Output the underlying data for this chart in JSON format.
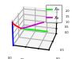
{
  "title": "",
  "legend_labels": [
    "$X_{fx}$",
    "$X_{tr}$"
  ],
  "legend_colors": [
    "#00ee00",
    "#cc00cc"
  ],
  "elev": 25,
  "azim": -75,
  "xlim": [
    0,
    0.5
  ],
  "ylim": [
    0,
    0.5
  ],
  "zlim": [
    0,
    2.0
  ],
  "blue_x": [
    0,
    0,
    0,
    0,
    0,
    0,
    0,
    0,
    0,
    0,
    0,
    0,
    0,
    0,
    0,
    0,
    0,
    0,
    0,
    0,
    0
  ],
  "blue_y": [
    0,
    0,
    0,
    0,
    0,
    0,
    0,
    0,
    0,
    0,
    0,
    0,
    0,
    0,
    0,
    0,
    0,
    0,
    0,
    0,
    0
  ],
  "blue_z": [
    0,
    0.1,
    0.2,
    0.3,
    0.4,
    0.5,
    0.6,
    0.7,
    0.8,
    0.9,
    1.0,
    1.1,
    1.2,
    1.3,
    1.4,
    1.5,
    1.6,
    1.7,
    1.8,
    1.9,
    2.0
  ],
  "red_x": [
    0.0,
    0.005,
    0.015,
    0.03,
    0.05,
    0.08,
    0.12,
    0.17,
    0.22,
    0.28,
    0.33
  ],
  "red_y": [
    0,
    0,
    0,
    0,
    0,
    0,
    0,
    0,
    0,
    0,
    0
  ],
  "red_z": [
    2.0,
    1.98,
    1.95,
    1.91,
    1.87,
    1.82,
    1.77,
    1.72,
    1.67,
    1.62,
    1.57
  ],
  "green_x": [
    0.33,
    0.43,
    0.53,
    0.63,
    0.73,
    0.83,
    0.93,
    1.03,
    1.13,
    1.23,
    1.33
  ],
  "green_y": [
    0,
    0,
    0,
    0,
    0,
    0,
    0,
    0,
    0,
    0,
    0
  ],
  "green_z": [
    1.57,
    1.57,
    1.57,
    1.57,
    1.57,
    1.57,
    1.57,
    1.57,
    1.57,
    1.57,
    1.57
  ],
  "magenta_x": [
    0.33,
    0.4,
    0.47,
    0.54,
    0.6,
    0.66,
    0.72,
    0.77,
    0.82,
    0.86,
    0.89
  ],
  "magenta_y": [
    0,
    0.04,
    0.09,
    0.15,
    0.22,
    0.29,
    0.35,
    0.41,
    0.46,
    0.5,
    0.53
  ],
  "magenta_z": [
    1.57,
    1.54,
    1.5,
    1.45,
    1.39,
    1.33,
    1.27,
    1.22,
    1.17,
    1.13,
    1.1
  ]
}
